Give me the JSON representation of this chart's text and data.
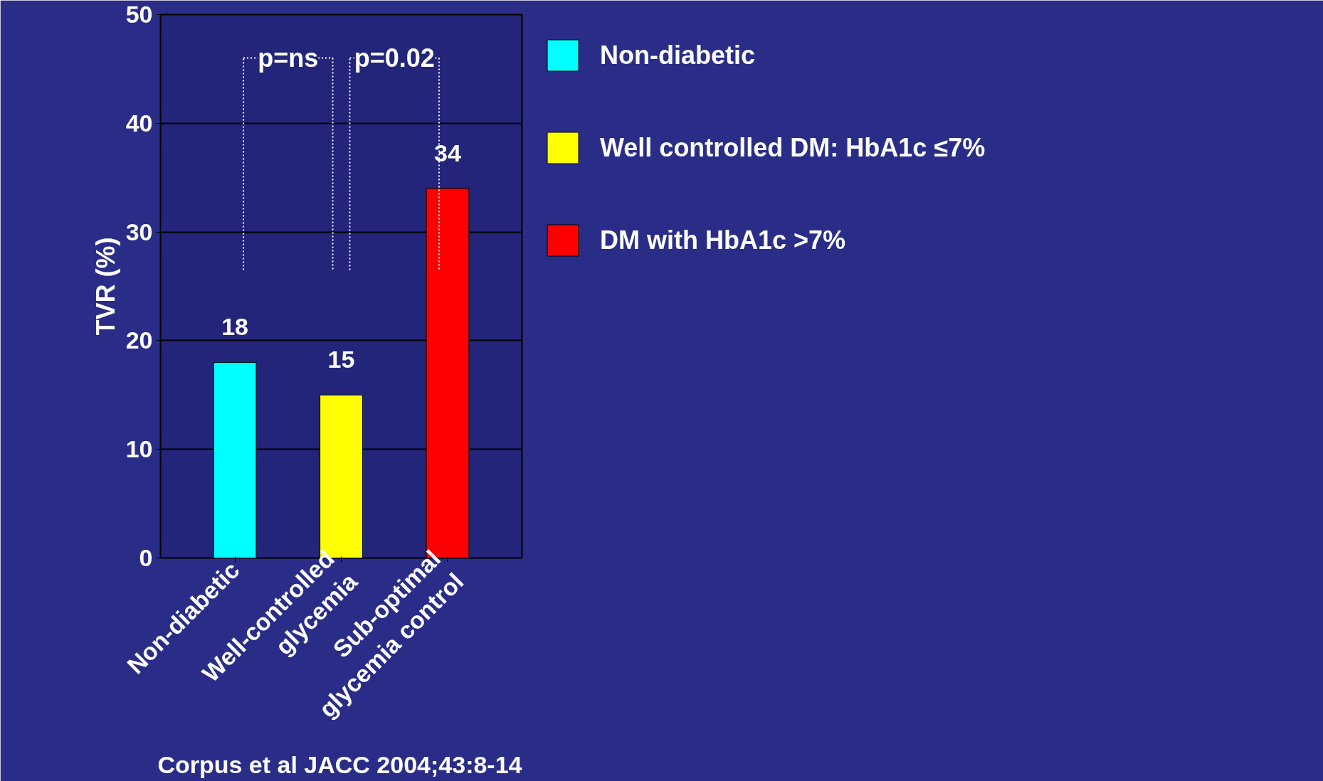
{
  "chart_data": {
    "type": "bar",
    "stacked": true,
    "categories": [
      "Non-diabetic",
      "Well-controlled\nglycemia",
      "Sub-optimal\nglycemia control"
    ],
    "series": [
      {
        "name": "Non-diabetic",
        "color": "#00ffff",
        "values": [
          18,
          null,
          null
        ]
      },
      {
        "name": "Well controlled DM: HbA1c ≤7%",
        "color": "#ffff00",
        "values": [
          null,
          15,
          null
        ]
      },
      {
        "name": "DM with HbA1c >7%",
        "color": "#ff0000",
        "values": [
          null,
          null,
          34
        ]
      }
    ],
    "ylabel": "TVR (%)",
    "ylim": [
      0,
      50
    ],
    "yticks": [
      0,
      10,
      20,
      30,
      40,
      50
    ],
    "grid": "y",
    "data_labels": true,
    "legend": "right",
    "annotations": [
      "p=ns",
      "p=0.02",
      "Corpus et al JACC 2004;43:8-14"
    ]
  }
}
